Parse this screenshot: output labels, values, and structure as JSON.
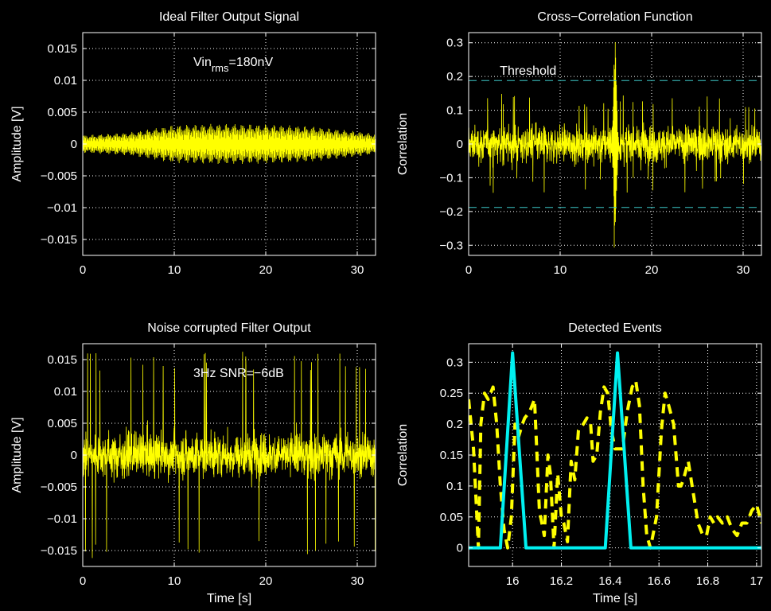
{
  "chart_data": [
    {
      "id": "ideal",
      "type": "line",
      "title": "Ideal Filter Output Signal",
      "xlabel": "",
      "ylabel": "Amplitude [V]",
      "xlim": [
        0,
        32
      ],
      "ylim": [
        -0.0175,
        0.0175
      ],
      "xticks": [
        0,
        10,
        20,
        30
      ],
      "yticks": [
        -0.015,
        -0.01,
        -0.005,
        0,
        0.005,
        0.01,
        0.015
      ],
      "ytick_labels": [
        "−0.015",
        "−0.01",
        "−0.005",
        "0",
        "0.005",
        "0.01",
        "0.015"
      ],
      "grid": true,
      "annotation": {
        "base": "Vin",
        "sub": "rms",
        "rest": "=180nV"
      },
      "signal": {
        "kind": "modulated_sinusoid",
        "envelope": [
          [
            0,
            0.0014
          ],
          [
            5,
            0.0018
          ],
          [
            10,
            0.003
          ],
          [
            15,
            0.0032
          ],
          [
            20,
            0.0031
          ],
          [
            25,
            0.0028
          ],
          [
            30,
            0.002
          ],
          [
            32,
            0.0016
          ]
        ]
      },
      "series_color": "#ffff00"
    },
    {
      "id": "xcorr",
      "type": "line",
      "title": "Cross−Correlation Function",
      "xlabel": "",
      "ylabel": "Correlation",
      "xlim": [
        0,
        32
      ],
      "ylim": [
        -0.33,
        0.33
      ],
      "xticks": [
        0,
        10,
        20,
        30
      ],
      "yticks": [
        -0.3,
        -0.2,
        -0.1,
        0,
        0.1,
        0.2,
        0.3
      ],
      "ytick_labels": [
        "−0.3",
        "−0.2",
        "−0.1",
        "0",
        "0.1",
        "0.2",
        "0.3"
      ],
      "grid": true,
      "threshold": 0.188,
      "threshold_label": "Threshold",
      "peak": {
        "x": 16.0,
        "y": 0.315,
        "min": -0.265
      },
      "series_color": "#ffff00",
      "threshold_color": "#3cc8c8"
    },
    {
      "id": "noisy",
      "type": "line",
      "title": "Noise corrupted Filter Output",
      "xlabel": "Time [s]",
      "ylabel": "Amplitude [V]",
      "xlim": [
        0,
        32
      ],
      "ylim": [
        -0.0175,
        0.0175
      ],
      "xticks": [
        0,
        10,
        20,
        30
      ],
      "yticks": [
        -0.015,
        -0.01,
        -0.005,
        0,
        0.005,
        0.01,
        0.015
      ],
      "ytick_labels": [
        "−0.015",
        "−0.01",
        "−0.005",
        "0",
        "0.005",
        "0.01",
        "0.015"
      ],
      "grid": true,
      "annotation_text": "3Hz SNR=−6dB",
      "signal": {
        "kind": "noise",
        "typical_peak": 0.009,
        "max_peak": 0.0165
      },
      "series_color": "#ffff00"
    },
    {
      "id": "events",
      "type": "line",
      "title": "Detected Events",
      "xlabel": "Time [s]",
      "ylabel": "Correlation",
      "xlim": [
        15.82,
        17.02
      ],
      "ylim": [
        -0.03,
        0.33
      ],
      "xticks": [
        16,
        16.2,
        16.4,
        16.6,
        16.8,
        17
      ],
      "yticks": [
        0,
        0.05,
        0.1,
        0.15,
        0.2,
        0.25,
        0.3
      ],
      "ytick_labels": [
        "0",
        "0.05",
        "0.1",
        "0.15",
        "0.2",
        "0.25",
        "0.3"
      ],
      "grid": true,
      "series": [
        {
          "style": "dashed",
          "color": "#ffff00",
          "x": [
            15.82,
            15.84,
            15.86,
            15.87,
            15.885,
            15.9,
            15.92,
            15.935,
            15.95,
            15.965,
            15.98,
            15.995,
            16.01,
            16.025,
            16.04,
            16.05,
            16.07,
            16.09,
            16.11,
            16.13,
            16.145,
            16.155,
            16.17,
            16.185,
            16.2,
            16.21,
            16.225,
            16.24,
            16.255,
            16.27,
            16.29,
            16.305,
            16.32,
            16.33,
            16.345,
            16.36,
            16.375,
            16.39,
            16.405,
            16.42,
            16.435,
            16.45,
            16.47,
            16.49,
            16.505,
            16.52,
            16.535,
            16.55,
            16.565,
            16.575,
            16.59,
            16.61,
            16.625,
            16.64,
            16.66,
            16.68,
            16.69,
            16.7,
            16.72,
            16.74,
            16.76,
            16.78,
            16.795,
            16.81,
            16.825,
            16.84,
            16.86,
            16.88,
            16.9,
            16.92,
            16.94,
            16.96,
            16.98,
            17.0,
            17.02
          ],
          "y": [
            0.24,
            0.16,
            0.0,
            0.2,
            0.25,
            0.24,
            0.26,
            0.2,
            0.1,
            0.03,
            0.0,
            0.05,
            0.2,
            0.18,
            0.2,
            0.21,
            0.22,
            0.24,
            0.06,
            0.02,
            0.15,
            0.12,
            0.0,
            0.12,
            0.05,
            0.04,
            0.01,
            0.14,
            0.11,
            0.19,
            0.2,
            0.21,
            0.2,
            0.14,
            0.15,
            0.22,
            0.26,
            0.25,
            0.19,
            0.16,
            0.16,
            0.16,
            0.22,
            0.26,
            0.27,
            0.23,
            0.1,
            0.02,
            0.0,
            0.02,
            0.05,
            0.19,
            0.25,
            0.23,
            0.2,
            0.1,
            0.1,
            0.11,
            0.14,
            0.09,
            0.04,
            0.02,
            0.02,
            0.05,
            0.04,
            0.05,
            0.04,
            0.05,
            0.03,
            0.02,
            0.04,
            0.04,
            0.06,
            0.07,
            0.04
          ]
        },
        {
          "style": "solid",
          "color": "#00f0f0",
          "x": [
            15.82,
            15.95,
            16.0,
            16.055,
            16.38,
            16.43,
            16.485,
            17.02
          ],
          "y": [
            0,
            0,
            0.315,
            0,
            0,
            0.315,
            0,
            0
          ]
        }
      ]
    }
  ]
}
